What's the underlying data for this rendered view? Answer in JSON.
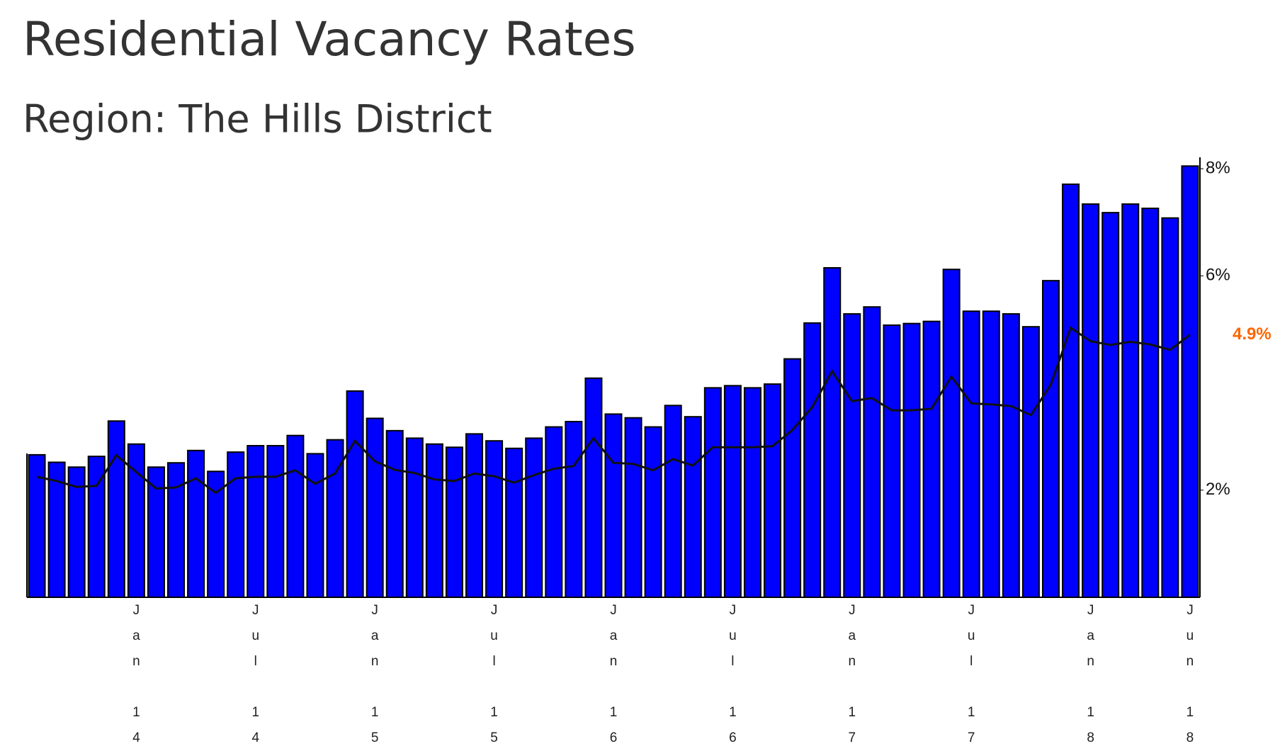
{
  "chart_data": {
    "type": "bar",
    "title": "Residential Vacancy Rates",
    "subtitle": "Region: The Hills District",
    "categories": [
      null,
      null,
      null,
      null,
      null,
      "Jan 14",
      null,
      null,
      null,
      null,
      null,
      "Jul 14",
      null,
      null,
      null,
      null,
      null,
      "Jan 15",
      null,
      null,
      null,
      null,
      null,
      "Jul 15",
      null,
      null,
      null,
      null,
      null,
      "Jan 16",
      null,
      null,
      null,
      null,
      null,
      "Jul 16",
      null,
      null,
      null,
      null,
      null,
      "Jan 17",
      null,
      null,
      null,
      null,
      null,
      "Jul 17",
      null,
      null,
      null,
      null,
      null,
      "Jan 18",
      null,
      null,
      null,
      null,
      "Jun 18"
    ],
    "series": [
      {
        "type": "bar",
        "color": "#0000ff",
        "values": [
          2.66,
          2.52,
          2.43,
          2.63,
          3.29,
          2.86,
          2.43,
          2.51,
          2.74,
          2.35,
          2.71,
          2.83,
          2.83,
          3.02,
          2.68,
          2.94,
          3.85,
          3.34,
          3.11,
          2.97,
          2.86,
          2.8,
          3.05,
          2.92,
          2.78,
          2.97,
          3.18,
          3.28,
          4.09,
          3.42,
          3.35,
          3.18,
          3.58,
          3.37,
          3.91,
          3.95,
          3.91,
          3.98,
          4.45,
          5.12,
          6.15,
          5.29,
          5.42,
          5.08,
          5.11,
          5.15,
          6.12,
          5.34,
          5.34,
          5.29,
          5.05,
          5.91,
          7.71,
          7.34,
          7.18,
          7.34,
          7.26,
          7.08,
          8.05
        ]
      },
      {
        "type": "line",
        "color": "#111111",
        "values": [
          2.25,
          2.17,
          2.06,
          2.08,
          2.65,
          2.34,
          2.03,
          2.05,
          2.22,
          1.95,
          2.22,
          2.25,
          2.25,
          2.37,
          2.12,
          2.31,
          2.92,
          2.54,
          2.38,
          2.32,
          2.2,
          2.17,
          2.31,
          2.26,
          2.14,
          2.28,
          2.4,
          2.45,
          2.97,
          2.51,
          2.49,
          2.37,
          2.58,
          2.46,
          2.8,
          2.8,
          2.8,
          2.82,
          3.12,
          3.55,
          4.22,
          3.66,
          3.72,
          3.49,
          3.49,
          3.52,
          4.12,
          3.62,
          3.6,
          3.57,
          3.4,
          3.97,
          5.03,
          4.78,
          4.71,
          4.77,
          4.72,
          4.62,
          4.9
        ],
        "value_labels": [
          null,
          null,
          null,
          null,
          null,
          null,
          null,
          null,
          null,
          null,
          null,
          null,
          null,
          null,
          null,
          null,
          null,
          null,
          null,
          null,
          null,
          null,
          null,
          null,
          null,
          null,
          null,
          null,
          null,
          null,
          null,
          null,
          null,
          null,
          null,
          null,
          null,
          null,
          null,
          null,
          null,
          null,
          null,
          null,
          null,
          null,
          null,
          null,
          null,
          null,
          null,
          null,
          null,
          null,
          null,
          null,
          null,
          null,
          "4.9%"
        ]
      }
    ],
    "ylim": [
      0,
      8.2
    ],
    "yticks": [
      {
        "value": 2,
        "label": "2%"
      },
      {
        "value": 6,
        "label": "6%"
      },
      {
        "value": 8,
        "label": "8%"
      }
    ],
    "grid": false
  }
}
